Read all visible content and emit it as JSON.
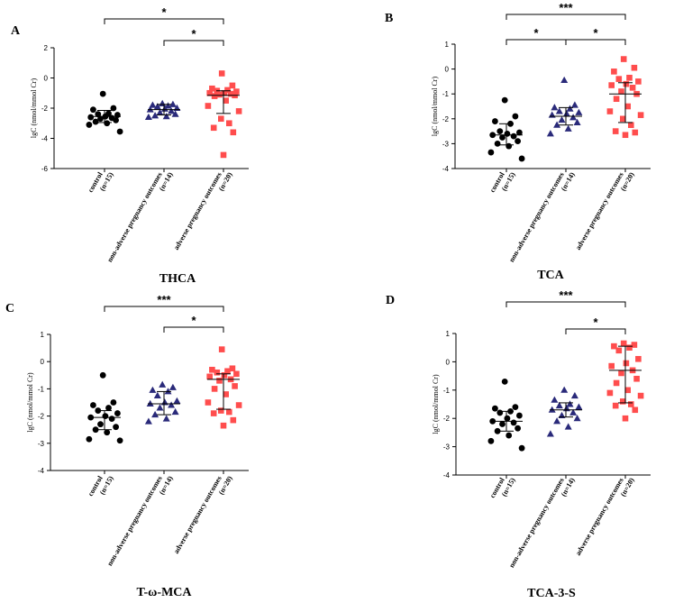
{
  "colors": {
    "control": "#000000",
    "non_adverse": "#2a2a7a",
    "adverse": "#ff4d4d"
  },
  "categories": [
    [
      "control",
      "(n=15)"
    ],
    [
      "non-adverse pregnancy outcomes",
      "(n=14)"
    ],
    [
      "adverse pregnancy outcomes",
      "(n=20)"
    ]
  ],
  "chart_data": [
    {
      "id": "A",
      "panel_letter": "A",
      "type": "scatter",
      "title": "THCA",
      "ylabel": "lgC (nmol/mmol Cr)",
      "ylim": [
        -6,
        2
      ],
      "yticks": [
        -6,
        -4,
        -2,
        0,
        2
      ],
      "series": [
        {
          "name": "control (n=15)",
          "marker": "circle",
          "color_key": "control",
          "mean": -2.55,
          "sd_low": -2.95,
          "sd_high": -2.15,
          "values": [
            -1.05,
            -2.0,
            -2.1,
            -2.35,
            -2.4,
            -2.45,
            -2.55,
            -2.6,
            -2.65,
            -2.7,
            -2.8,
            -2.9,
            -3.0,
            -3.1,
            -3.55
          ]
        },
        {
          "name": "non-adverse pregnancy outcomes (n=14)",
          "marker": "triangle",
          "color_key": "non_adverse",
          "mean": -2.1,
          "sd_low": -2.45,
          "sd_high": -1.75,
          "values": [
            -1.7,
            -1.75,
            -1.8,
            -1.85,
            -1.9,
            -2.0,
            -2.05,
            -2.1,
            -2.2,
            -2.3,
            -2.4,
            -2.5,
            -2.55,
            -2.6
          ]
        },
        {
          "name": "adverse pregnancy outcomes (n=20)",
          "marker": "square",
          "color_key": "adverse",
          "mean": -1.15,
          "sd_low": -2.35,
          "sd_high": -0.85,
          "values": [
            0.3,
            -0.5,
            -0.7,
            -0.8,
            -0.85,
            -0.9,
            -1.0,
            -1.0,
            -1.05,
            -1.1,
            -1.15,
            -1.2,
            -1.5,
            -1.85,
            -2.2,
            -2.7,
            -3.0,
            -3.3,
            -3.6,
            -5.1
          ]
        }
      ],
      "brackets": [
        {
          "from": 0,
          "to": 2,
          "label": "*",
          "level": 2
        },
        {
          "from": 1,
          "to": 2,
          "label": "*",
          "level": 1
        }
      ]
    },
    {
      "id": "B",
      "panel_letter": "B",
      "type": "scatter",
      "title": "TCA",
      "ylabel": "lgC (nmol/mmol Cr)",
      "ylim": [
        -4,
        1
      ],
      "yticks": [
        -4,
        -3,
        -2,
        -1,
        0,
        1
      ],
      "series": [
        {
          "name": "control (n=15)",
          "marker": "circle",
          "color_key": "control",
          "mean": -2.65,
          "sd_low": -3.05,
          "sd_high": -2.2,
          "values": [
            -1.25,
            -1.9,
            -2.1,
            -2.2,
            -2.5,
            -2.55,
            -2.6,
            -2.65,
            -2.7,
            -2.75,
            -2.9,
            -3.0,
            -3.1,
            -3.35,
            -3.6
          ]
        },
        {
          "name": "non-adverse pregnancy outcomes (n=14)",
          "marker": "triangle",
          "color_key": "non_adverse",
          "mean": -1.9,
          "sd_low": -2.25,
          "sd_high": -1.55,
          "values": [
            -0.45,
            -1.45,
            -1.55,
            -1.6,
            -1.7,
            -1.75,
            -1.8,
            -1.85,
            -1.95,
            -2.05,
            -2.15,
            -2.25,
            -2.4,
            -2.6
          ]
        },
        {
          "name": "adverse pregnancy outcomes (n=20)",
          "marker": "square",
          "color_key": "adverse",
          "mean": -1.0,
          "sd_low": -2.15,
          "sd_high": -0.55,
          "values": [
            0.4,
            0.05,
            -0.1,
            -0.35,
            -0.4,
            -0.5,
            -0.6,
            -0.65,
            -0.75,
            -0.9,
            -1.0,
            -1.2,
            -1.5,
            -1.7,
            -1.85,
            -2.0,
            -2.25,
            -2.5,
            -2.55,
            -2.65
          ]
        }
      ],
      "brackets": [
        {
          "from": 0,
          "to": 2,
          "label": "***",
          "level": 2
        },
        {
          "from": 0,
          "to": 1,
          "label": "*",
          "level": 1
        },
        {
          "from": 1,
          "to": 2,
          "label": "*",
          "level": 1
        }
      ]
    },
    {
      "id": "C",
      "panel_letter": "C",
      "type": "scatter",
      "title": "T-ω-MCA",
      "ylabel": "lgC (nmol/mmol Cr)",
      "ylim": [
        -4,
        1
      ],
      "yticks": [
        -4,
        -3,
        -2,
        -1,
        0,
        1
      ],
      "series": [
        {
          "name": "control (n=15)",
          "marker": "circle",
          "color_key": "control",
          "mean": -2.05,
          "sd_low": -2.5,
          "sd_high": -1.8,
          "values": [
            -0.5,
            -1.5,
            -1.6,
            -1.7,
            -1.8,
            -1.9,
            -2.0,
            -2.05,
            -2.1,
            -2.3,
            -2.4,
            -2.5,
            -2.6,
            -2.85,
            -2.9
          ]
        },
        {
          "name": "non-adverse pregnancy outcomes (n=14)",
          "marker": "triangle",
          "color_key": "non_adverse",
          "mean": -1.55,
          "sd_low": -1.95,
          "sd_high": -1.1,
          "values": [
            -0.85,
            -0.95,
            -1.05,
            -1.1,
            -1.25,
            -1.45,
            -1.5,
            -1.55,
            -1.6,
            -1.7,
            -1.85,
            -1.95,
            -2.1,
            -2.2
          ]
        },
        {
          "name": "adverse pregnancy outcomes (n=20)",
          "marker": "square",
          "color_key": "adverse",
          "mean": -0.65,
          "sd_low": -1.75,
          "sd_high": -0.45,
          "values": [
            0.45,
            -0.25,
            -0.3,
            -0.35,
            -0.4,
            -0.45,
            -0.5,
            -0.55,
            -0.65,
            -0.7,
            -0.9,
            -1.0,
            -1.2,
            -1.5,
            -1.6,
            -1.8,
            -1.85,
            -1.9,
            -2.15,
            -2.35
          ]
        }
      ],
      "brackets": [
        {
          "from": 0,
          "to": 2,
          "label": "***",
          "level": 2
        },
        {
          "from": 1,
          "to": 2,
          "label": "*",
          "level": 1
        }
      ]
    },
    {
      "id": "D",
      "panel_letter": "D",
      "type": "scatter",
      "title": "TCA-3-S",
      "ylabel": "lgC (nmol/mmol Cr)",
      "ylim": [
        -4,
        1
      ],
      "yticks": [
        -4,
        -3,
        -2,
        -1,
        0,
        1
      ],
      "series": [
        {
          "name": "control (n=15)",
          "marker": "circle",
          "color_key": "control",
          "mean": -2.1,
          "sd_low": -2.45,
          "sd_high": -1.75,
          "values": [
            -0.7,
            -1.6,
            -1.65,
            -1.75,
            -1.8,
            -1.9,
            -2.0,
            -2.1,
            -2.15,
            -2.2,
            -2.35,
            -2.45,
            -2.6,
            -2.8,
            -3.05
          ]
        },
        {
          "name": "non-adverse pregnancy outcomes (n=14)",
          "marker": "triangle",
          "color_key": "non_adverse",
          "mean": -1.7,
          "sd_low": -1.95,
          "sd_high": -1.45,
          "values": [
            -1.0,
            -1.2,
            -1.35,
            -1.5,
            -1.55,
            -1.6,
            -1.65,
            -1.7,
            -1.8,
            -1.9,
            -2.0,
            -2.1,
            -2.3,
            -2.55
          ]
        },
        {
          "name": "adverse pregnancy outcomes (n=20)",
          "marker": "square",
          "color_key": "adverse",
          "mean": -0.3,
          "sd_low": -1.45,
          "sd_high": 0.55,
          "values": [
            0.65,
            0.6,
            0.55,
            0.5,
            0.4,
            0.1,
            -0.05,
            -0.15,
            -0.3,
            -0.4,
            -0.6,
            -0.75,
            -1.0,
            -1.1,
            -1.2,
            -1.4,
            -1.5,
            -1.55,
            -1.7,
            -2.0
          ]
        }
      ],
      "brackets": [
        {
          "from": 0,
          "to": 2,
          "label": "***",
          "level": 2
        },
        {
          "from": 1,
          "to": 2,
          "label": "*",
          "level": 1
        }
      ]
    }
  ]
}
